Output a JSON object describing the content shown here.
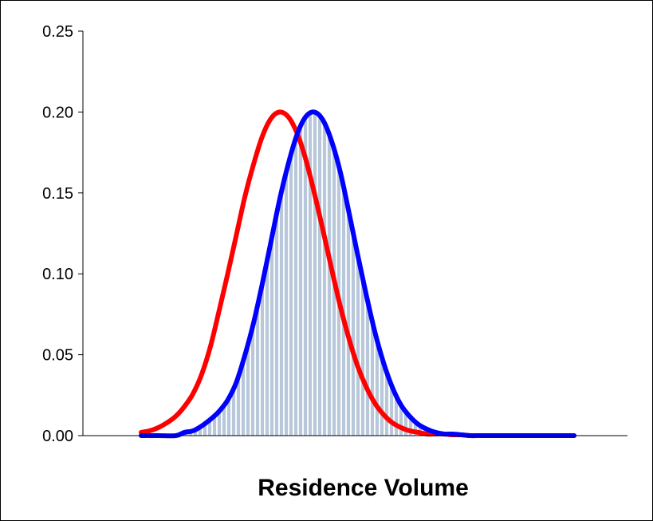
{
  "chart_data": {
    "type": "area",
    "xlabel": "Residence Volume",
    "ylabel": "",
    "ylim": [
      0,
      0.25
    ],
    "xlim": [
      0,
      1
    ],
    "yticks": [
      "0.00",
      "0.05",
      "0.10",
      "0.15",
      "0.20",
      "0.25"
    ],
    "yticks_values": [
      0,
      0.05,
      0.1,
      0.15,
      0.2,
      0.25
    ],
    "grid": false,
    "x_ticks_shown": false,
    "series": [
      {
        "color": "#ff0000",
        "style": "line",
        "x": [
          0.0,
          0.02,
          0.04,
          0.06,
          0.08,
          0.1,
          0.12,
          0.14,
          0.16,
          0.18,
          0.2,
          0.22,
          0.24,
          0.26,
          0.28,
          0.3,
          0.32,
          0.34,
          0.36,
          0.38,
          0.4,
          0.42,
          0.44,
          0.46,
          0.48,
          0.5,
          0.52,
          0.54,
          0.56,
          0.58,
          0.6,
          0.62,
          0.64,
          0.66,
          0.68,
          0.7,
          0.72,
          0.74,
          0.76,
          0.78,
          0.8,
          0.84,
          0.88,
          0.92,
          0.96,
          1.0
        ],
        "y": [
          0.002,
          0.003,
          0.005,
          0.008,
          0.012,
          0.018,
          0.026,
          0.038,
          0.055,
          0.077,
          0.1,
          0.124,
          0.148,
          0.168,
          0.185,
          0.196,
          0.2,
          0.197,
          0.187,
          0.171,
          0.15,
          0.127,
          0.103,
          0.08,
          0.06,
          0.043,
          0.03,
          0.02,
          0.013,
          0.008,
          0.005,
          0.003,
          0.002,
          0.001,
          0.001,
          0.001,
          0.0005,
          0.0005,
          0.0,
          0.0,
          0.0,
          0.0,
          0.0,
          0.0,
          0.0,
          0.0
        ]
      },
      {
        "color": "#0000ff",
        "style": "line",
        "fill_color": "#b8c8da",
        "x": [
          0.0,
          0.04,
          0.08,
          0.1,
          0.12,
          0.14,
          0.16,
          0.18,
          0.2,
          0.22,
          0.24,
          0.26,
          0.28,
          0.3,
          0.32,
          0.34,
          0.36,
          0.38,
          0.4,
          0.42,
          0.44,
          0.46,
          0.48,
          0.5,
          0.52,
          0.54,
          0.56,
          0.58,
          0.6,
          0.62,
          0.64,
          0.66,
          0.68,
          0.7,
          0.72,
          0.74,
          0.76,
          0.78,
          0.8,
          0.84,
          0.88,
          0.92,
          0.96,
          1.0
        ],
        "y": [
          0.0,
          0.0,
          0.0,
          0.002,
          0.003,
          0.006,
          0.01,
          0.015,
          0.022,
          0.033,
          0.05,
          0.07,
          0.094,
          0.12,
          0.146,
          0.168,
          0.186,
          0.197,
          0.2,
          0.195,
          0.182,
          0.163,
          0.138,
          0.112,
          0.087,
          0.064,
          0.045,
          0.03,
          0.019,
          0.012,
          0.007,
          0.004,
          0.002,
          0.001,
          0.001,
          0.0005,
          0.0,
          0.0,
          0.0,
          0.0,
          0.0,
          0.0,
          0.0,
          0.0
        ]
      }
    ]
  }
}
